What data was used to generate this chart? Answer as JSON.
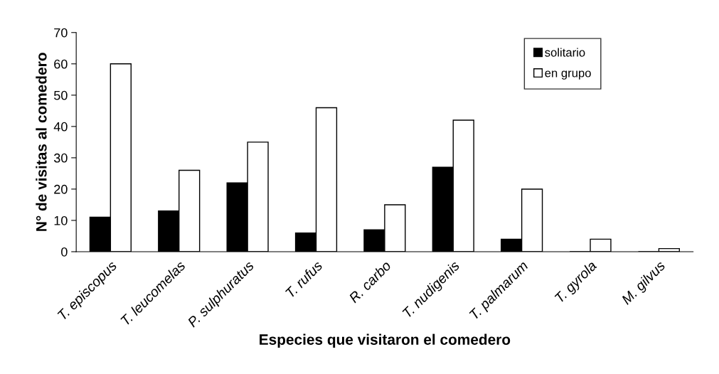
{
  "chart_data": {
    "type": "bar",
    "xlabel": "Especies que visitaron el comedero",
    "ylabel": "N° de visitas al comedero",
    "categories": [
      "T. episcopus",
      "T. leucomelas",
      "P. sulphuratus",
      "T. rufus",
      "R. carbo",
      "T. nudigenis",
      "T. palmarum",
      "T. gyrola",
      "M. gilvus"
    ],
    "series": [
      {
        "name": "solitario",
        "color": "#000000",
        "values": [
          11,
          13,
          22,
          6,
          7,
          27,
          4,
          0,
          0
        ]
      },
      {
        "name": "en grupo",
        "color": "#ffffff",
        "values": [
          60,
          26,
          35,
          46,
          15,
          42,
          20,
          4,
          1
        ]
      }
    ],
    "ylim": [
      0,
      70
    ],
    "yticks": [
      0,
      10,
      20,
      30,
      40,
      50,
      60,
      70
    ],
    "grid": false,
    "legend": "top right"
  }
}
